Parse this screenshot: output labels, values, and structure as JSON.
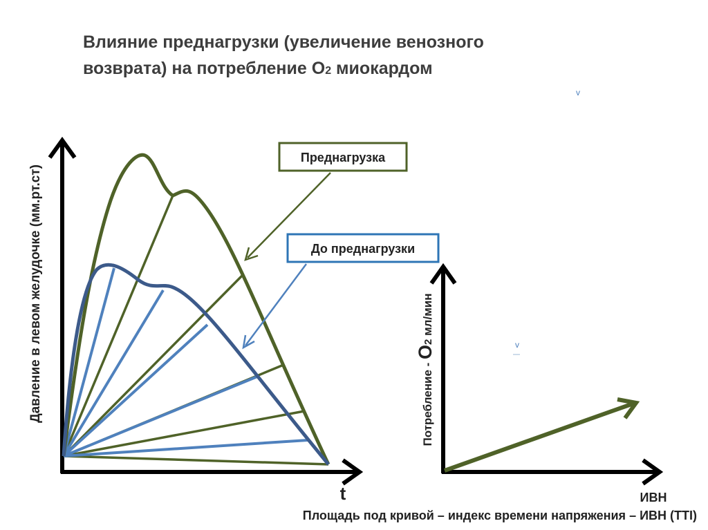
{
  "title": {
    "line1": "Влияние преднагрузки (увеличение венозного",
    "line2_pre": "возврата) на потребление  О",
    "line2_sub": "2",
    "line2_post": " миокардом"
  },
  "left_chart": {
    "y_axis_label": "Давление в левом желудочке (мм.рт.ст)",
    "x_axis_label": "t",
    "callout_preload": "Преднагрузка",
    "callout_before": "До преднагрузки",
    "colors": {
      "preload": "#4f6228",
      "before": "#4f81bd",
      "before_dark": "#3c5a8a",
      "axis": "#000000"
    }
  },
  "right_chart": {
    "y_axis_label_pre": "Потребление - ",
    "y_axis_label_o2": "О",
    "y_axis_label_sub": "2",
    "y_axis_label_post": "  мл/мин",
    "x_axis_label": "ИВН"
  },
  "caption": "Площадь под кривой – индекс времени напряжения – ИВН (TTI)",
  "marks": {
    "tick1": "v",
    "tick2": "v"
  }
}
